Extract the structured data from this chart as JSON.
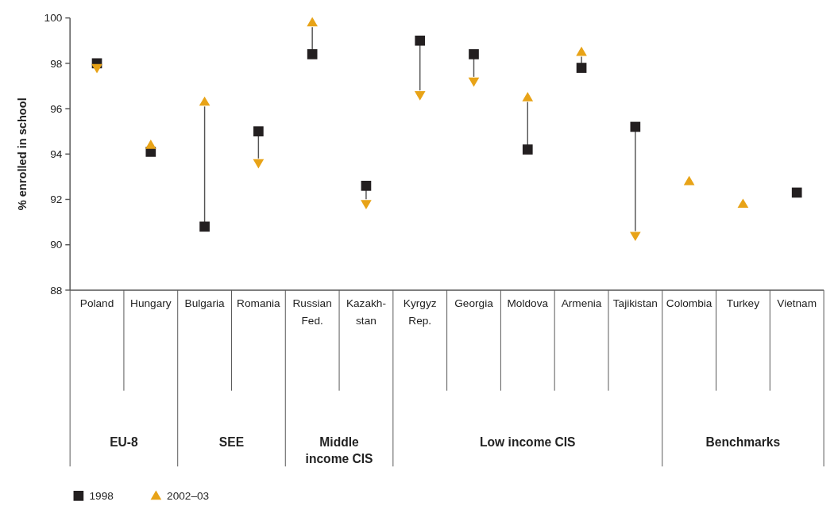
{
  "chart_data": {
    "type": "scatter",
    "ylabel": "% enrolled in school",
    "categories": [
      "Poland",
      "Hungary",
      "Bulgaria",
      "Romania",
      "Russian\nFed.",
      "Kazakh-\nstan",
      "Kyrgyz\nRep.",
      "Georgia",
      "Moldova",
      "Armenia",
      "Tajikistan",
      "Colombia",
      "Turkey",
      "Vietnam"
    ],
    "series": [
      {
        "name": "1998",
        "color": "#231f20",
        "marker": "square",
        "values": [
          98.0,
          94.1,
          90.8,
          95.0,
          98.4,
          92.6,
          99.0,
          98.4,
          94.2,
          97.8,
          95.2,
          null,
          null,
          92.3
        ]
      },
      {
        "name": "2002–03",
        "color": "#e8a317",
        "marker": "triangle",
        "values": [
          97.8,
          94.4,
          96.3,
          93.6,
          99.8,
          91.8,
          96.6,
          97.2,
          96.5,
          98.5,
          90.4,
          92.8,
          91.8,
          null
        ]
      }
    ],
    "annotations": [
      "EU-8",
      "SEE",
      "Middle\nincome CIS",
      "Low income CIS",
      "Benchmarks"
    ],
    "ylim": [
      88,
      100
    ],
    "yticks": [
      88,
      90,
      92,
      94,
      96,
      98,
      100
    ],
    "grid": false,
    "legend": "bottom left"
  }
}
